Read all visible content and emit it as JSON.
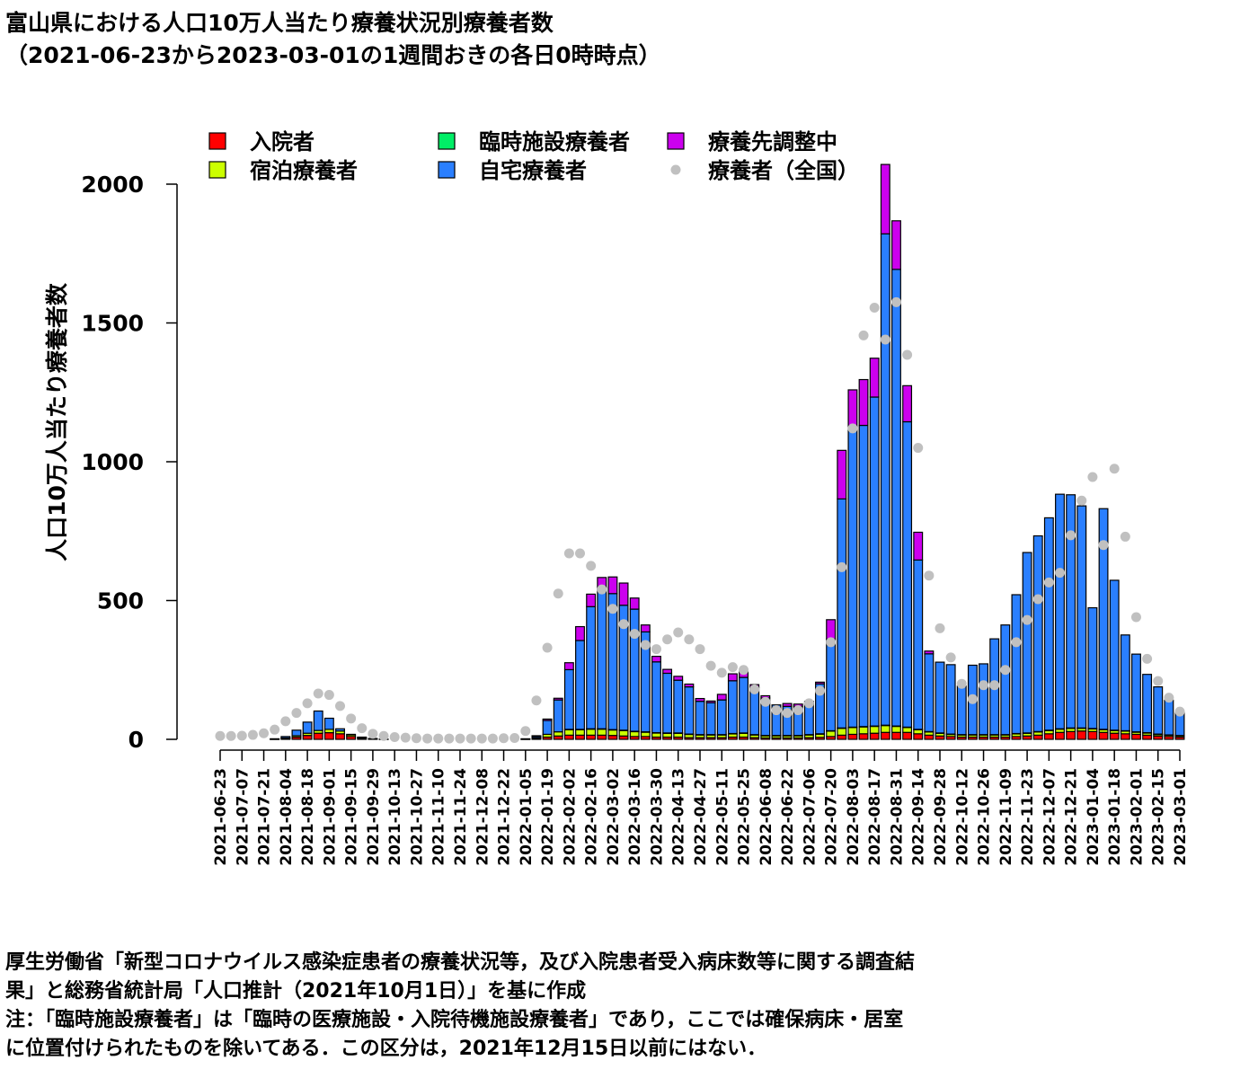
{
  "title": "富山県における人口10万人当たり療養状況別療養者数",
  "subtitle": "（2021-06-23から2023-03-01の1週間おきの各日0時時点）",
  "footnotes": {
    "line1": "厚生労働省「新型コロナウイルス感染症患者の療養状況等，及び入院患者受入病床数等に関する調査結",
    "line2": "果」と総務省統計局「人口推計（2021年10月1日）」を基に作成",
    "line3": "注：「臨時施設療養者」は「臨時の医療施設・入院待機施設療養者」であり，ここでは確保病床・居室",
    "line4": "に位置付けられたものを除いてある．この区分は，2021年12月15日以前にはない．"
  },
  "chart_data": {
    "type": "bar",
    "stacked": true,
    "ylabel": "人口10万人当たり療養者数",
    "xlabel": "",
    "ylim": [
      0,
      2000
    ],
    "yticks": [
      0,
      500,
      1000,
      1500,
      2000
    ],
    "legend_position": "top",
    "x": [
      "2021-06-23",
      "2021-06-30",
      "2021-07-07",
      "2021-07-14",
      "2021-07-21",
      "2021-07-28",
      "2021-08-04",
      "2021-08-11",
      "2021-08-18",
      "2021-08-25",
      "2021-09-01",
      "2021-09-08",
      "2021-09-15",
      "2021-09-22",
      "2021-09-29",
      "2021-10-06",
      "2021-10-13",
      "2021-10-20",
      "2021-10-27",
      "2021-11-03",
      "2021-11-10",
      "2021-11-17",
      "2021-11-24",
      "2021-12-01",
      "2021-12-08",
      "2021-12-15",
      "2021-12-22",
      "2021-12-29",
      "2022-01-05",
      "2022-01-12",
      "2022-01-19",
      "2022-01-26",
      "2022-02-02",
      "2022-02-09",
      "2022-02-16",
      "2022-02-23",
      "2022-03-02",
      "2022-03-09",
      "2022-03-16",
      "2022-03-23",
      "2022-03-30",
      "2022-04-06",
      "2022-04-13",
      "2022-04-20",
      "2022-04-27",
      "2022-05-04",
      "2022-05-11",
      "2022-05-18",
      "2022-05-25",
      "2022-06-01",
      "2022-06-08",
      "2022-06-15",
      "2022-06-22",
      "2022-06-29",
      "2022-07-06",
      "2022-07-13",
      "2022-07-20",
      "2022-07-27",
      "2022-08-03",
      "2022-08-10",
      "2022-08-17",
      "2022-08-24",
      "2022-08-31",
      "2022-09-07",
      "2022-09-14",
      "2022-09-21",
      "2022-09-28",
      "2022-10-05",
      "2022-10-12",
      "2022-10-19",
      "2022-10-26",
      "2022-11-02",
      "2022-11-09",
      "2022-11-16",
      "2022-11-23",
      "2022-11-30",
      "2022-12-07",
      "2022-12-14",
      "2022-12-21",
      "2022-12-28",
      "2023-01-04",
      "2023-01-11",
      "2023-01-18",
      "2023-01-25",
      "2023-02-01",
      "2023-02-08",
      "2023-02-15",
      "2023-02-22",
      "2023-03-01"
    ],
    "xtick_labels": [
      "2021-06-23",
      "2021-07-07",
      "2021-07-21",
      "2021-08-04",
      "2021-08-18",
      "2021-09-01",
      "2021-09-15",
      "2021-09-29",
      "2021-10-13",
      "2021-10-27",
      "2021-11-10",
      "2021-11-24",
      "2021-12-08",
      "2021-12-22",
      "2022-01-05",
      "2022-01-19",
      "2022-02-02",
      "2022-02-16",
      "2022-03-02",
      "2022-03-16",
      "2022-03-30",
      "2022-04-13",
      "2022-04-27",
      "2022-05-11",
      "2022-05-25",
      "2022-06-08",
      "2022-06-22",
      "2022-07-06",
      "2022-07-20",
      "2022-08-03",
      "2022-08-17",
      "2022-08-31",
      "2022-09-14",
      "2022-09-28",
      "2022-10-12",
      "2022-10-26",
      "2022-11-09",
      "2022-11-23",
      "2022-12-07",
      "2022-12-21",
      "2023-01-04",
      "2023-01-18",
      "2023-02-01",
      "2023-02-15",
      "2023-03-01"
    ],
    "series": [
      {
        "name": "入院者",
        "color": "#ff0000",
        "values": [
          0,
          0,
          0,
          0,
          0,
          1,
          3,
          8,
          14,
          22,
          24,
          20,
          10,
          4,
          2,
          1,
          0,
          0,
          0,
          0,
          0,
          0,
          0,
          0,
          0,
          0,
          0,
          0,
          1,
          3,
          8,
          12,
          15,
          15,
          15,
          15,
          14,
          12,
          10,
          10,
          8,
          8,
          8,
          6,
          6,
          6,
          6,
          8,
          8,
          6,
          5,
          5,
          5,
          5,
          6,
          7,
          10,
          15,
          18,
          20,
          22,
          25,
          25,
          25,
          20,
          15,
          12,
          10,
          8,
          8,
          8,
          8,
          8,
          10,
          12,
          15,
          20,
          25,
          28,
          30,
          28,
          25,
          22,
          20,
          18,
          15,
          12,
          10,
          8
        ]
      },
      {
        "name": "宿泊療養者",
        "color": "#ccff00",
        "values": [
          0,
          0,
          0,
          0,
          0,
          0,
          2,
          5,
          8,
          10,
          12,
          10,
          6,
          3,
          1,
          0,
          0,
          0,
          0,
          0,
          0,
          0,
          0,
          0,
          0,
          0,
          0,
          0,
          0,
          3,
          10,
          15,
          20,
          20,
          22,
          22,
          20,
          20,
          18,
          16,
          15,
          14,
          14,
          12,
          10,
          10,
          10,
          12,
          14,
          10,
          8,
          8,
          8,
          8,
          10,
          12,
          20,
          25,
          25,
          25,
          25,
          25,
          22,
          18,
          15,
          12,
          10,
          8,
          8,
          8,
          8,
          8,
          8,
          10,
          10,
          12,
          12,
          12,
          12,
          10,
          10,
          10,
          10,
          10,
          8,
          8,
          6,
          5,
          5
        ]
      },
      {
        "name": "臨時施設療養者",
        "color": "#00ee66",
        "values": [
          0,
          0,
          0,
          0,
          0,
          0,
          0,
          0,
          0,
          0,
          0,
          0,
          0,
          0,
          0,
          0,
          0,
          0,
          0,
          0,
          0,
          0,
          0,
          0,
          0,
          0,
          0,
          0,
          0,
          0,
          0,
          0,
          1,
          1,
          1,
          1,
          1,
          1,
          1,
          1,
          1,
          1,
          1,
          1,
          1,
          1,
          1,
          1,
          1,
          1,
          1,
          1,
          1,
          1,
          1,
          1,
          1,
          1,
          1,
          1,
          1,
          1,
          1,
          1,
          1,
          1,
          1,
          1,
          1,
          1,
          1,
          1,
          1,
          1,
          1,
          1,
          1,
          1,
          1,
          1,
          1,
          1,
          1,
          1,
          1,
          1,
          1,
          1,
          1
        ]
      },
      {
        "name": "自宅療養者",
        "color": "#2a7fff",
        "values": [
          0,
          0,
          0,
          0,
          0,
          1,
          5,
          20,
          40,
          70,
          40,
          8,
          2,
          1,
          0,
          0,
          0,
          0,
          0,
          0,
          0,
          0,
          0,
          0,
          0,
          0,
          0,
          0,
          1,
          5,
          50,
          115,
          215,
          320,
          440,
          510,
          490,
          450,
          440,
          360,
          255,
          215,
          190,
          170,
          120,
          115,
          125,
          190,
          200,
          170,
          135,
          110,
          105,
          105,
          110,
          180,
          330,
          825,
          1075,
          1085,
          1185,
          1770,
          1645,
          1100,
          610,
          280,
          255,
          250,
          175,
          250,
          255,
          345,
          395,
          500,
          650,
          705,
          765,
          845,
          840,
          800,
          435,
          795,
          540,
          345,
          280,
          210,
          170,
          125,
          85
        ]
      },
      {
        "name": "療養先調整中",
        "color": "#cc00ee",
        "values": [
          0,
          0,
          0,
          0,
          0,
          0,
          0,
          0,
          0,
          0,
          0,
          0,
          0,
          0,
          0,
          0,
          0,
          0,
          0,
          0,
          0,
          0,
          0,
          0,
          0,
          0,
          0,
          0,
          0,
          2,
          5,
          6,
          25,
          50,
          45,
          35,
          60,
          80,
          40,
          25,
          20,
          14,
          14,
          10,
          10,
          6,
          20,
          25,
          20,
          10,
          8,
          0,
          10,
          8,
          10,
          6,
          70,
          175,
          140,
          165,
          140,
          250,
          175,
          130,
          100,
          10,
          0,
          0,
          0,
          0,
          0,
          0,
          0,
          0,
          0,
          0,
          0,
          0,
          0,
          0,
          0,
          0,
          0,
          0,
          0,
          0,
          0,
          0,
          0
        ]
      },
      {
        "name": "療養者（全国）",
        "color": "#c0c0c0",
        "kind": "points",
        "values": [
          12,
          12,
          13,
          16,
          22,
          35,
          65,
          95,
          130,
          165,
          160,
          120,
          75,
          40,
          20,
          12,
          8,
          6,
          4,
          3,
          3,
          3,
          3,
          3,
          3,
          3,
          4,
          5,
          30,
          140,
          330,
          525,
          670,
          670,
          625,
          540,
          470,
          415,
          380,
          340,
          325,
          360,
          385,
          360,
          325,
          265,
          240,
          260,
          250,
          180,
          135,
          105,
          95,
          105,
          130,
          175,
          350,
          620,
          1120,
          1455,
          1555,
          1440,
          1575,
          1385,
          1050,
          590,
          400,
          295,
          200,
          145,
          195,
          195,
          250,
          350,
          430,
          505,
          565,
          600,
          735,
          860,
          945,
          700,
          975,
          730,
          440,
          290,
          210,
          150,
          100
        ]
      }
    ]
  }
}
